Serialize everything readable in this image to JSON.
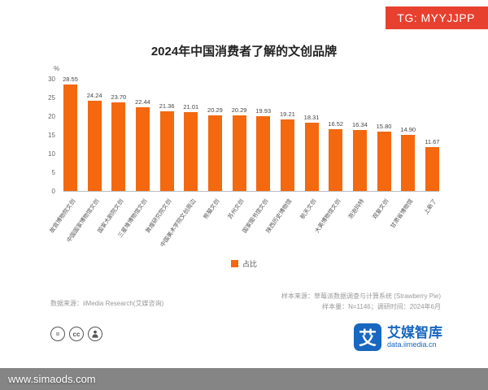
{
  "badge": {
    "text": "TG: MYYJJPP"
  },
  "colors": {
    "bar": "#f4680f",
    "badge": "#e8402f",
    "logo_blue": "#1867c0"
  },
  "chart_data": {
    "type": "bar",
    "title": "2024年中国消费者了解的文创品牌",
    "unit_label": "%",
    "legend_label": "占比",
    "legend_position": "bottom-center",
    "grid": false,
    "ylim": [
      0,
      30
    ],
    "y_ticks": [
      0,
      5,
      10,
      15,
      20,
      25,
      30
    ],
    "categories": [
      "故宫博物院文创",
      "中国国家博物馆文创",
      "国家大剧院文创",
      "三星堆博物馆文创",
      "敦煌研究院文创",
      "中国美术学院文创周边",
      "熊猫文创",
      "苏州文创",
      "国家图书馆文创",
      "陕西历史博物馆",
      "航天文创",
      "大英博物馆文创",
      "泡泡玛特",
      "观复文创",
      "甘肃省博物馆",
      "上新了"
    ],
    "values": [
      28.55,
      24.24,
      23.7,
      22.44,
      21.36,
      21.01,
      20.29,
      20.29,
      19.93,
      19.21,
      18.31,
      16.52,
      16.34,
      15.8,
      14.9,
      11.67
    ]
  },
  "footer": {
    "source_left": "数据来源：iiMedia Research(艾媒咨询)",
    "sample_source": "样本来源：草莓派数据调查与计算系统 (Strawberry Pie)",
    "sample_info": "样本量：N=1146；调研时间：2024年6月",
    "logo": {
      "mark": "艾",
      "name": "艾媒智库",
      "domain": "data.iimedia.cn"
    }
  },
  "watermark": {
    "text": "www.simaods.com"
  }
}
